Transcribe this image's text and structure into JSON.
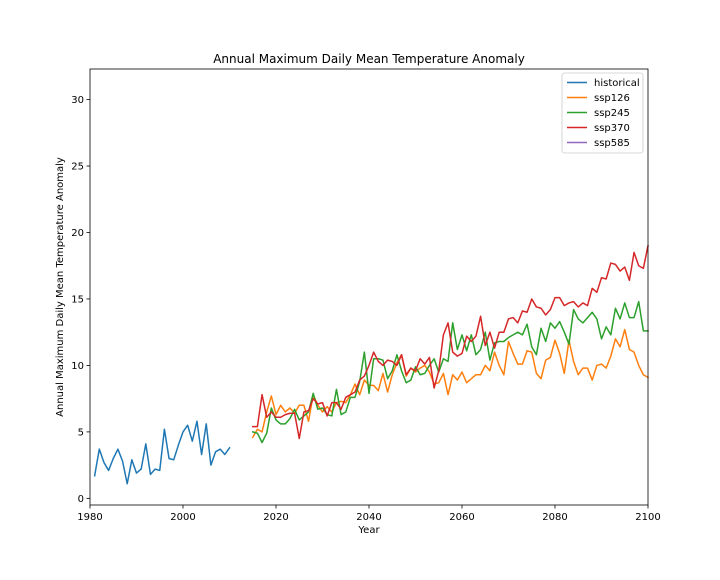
{
  "chart_data": {
    "type": "line",
    "title": "Annual Maximum Daily Mean Temperature Anomaly",
    "xlabel": "Year",
    "ylabel": "Annual Maximum Daily Mean Temperature Anomaly",
    "xlim": [
      1980,
      2100
    ],
    "ylim": [
      -0.5,
      32.3
    ],
    "xticks": [
      1980,
      2000,
      2020,
      2040,
      2060,
      2080,
      2100
    ],
    "yticks": [
      0,
      5,
      10,
      15,
      20,
      25,
      30
    ],
    "grid": false,
    "legend_position": "top-right",
    "series": [
      {
        "name": "historical",
        "color": "#1f77b4",
        "x": [
          1981,
          1982,
          1983,
          1984,
          1985,
          1986,
          1987,
          1988,
          1989,
          1990,
          1991,
          1992,
          1993,
          1994,
          1995,
          1996,
          1997,
          1998,
          1999,
          2000,
          2001,
          2002,
          2003,
          2004,
          2005,
          2006,
          2007,
          2008,
          2009,
          2010
        ],
        "y": [
          1.7,
          3.7,
          2.7,
          2.1,
          3.0,
          3.7,
          2.8,
          1.1,
          2.9,
          1.9,
          2.2,
          4.1,
          1.8,
          2.2,
          2.1,
          5.2,
          3.0,
          2.9,
          4.0,
          5.0,
          5.5,
          4.3,
          5.8,
          3.3,
          5.6,
          2.5,
          3.5,
          3.7,
          3.3,
          3.8
        ]
      },
      {
        "name": "ssp126",
        "color": "#ff7f0e",
        "x": [
          2015,
          2016,
          2017,
          2018,
          2019,
          2020,
          2021,
          2022,
          2023,
          2024,
          2025,
          2026,
          2027,
          2028,
          2029,
          2030,
          2031,
          2032,
          2033,
          2034,
          2035,
          2036,
          2037,
          2038,
          2039,
          2040,
          2041,
          2042,
          2043,
          2044,
          2045,
          2046,
          2047,
          2048,
          2049,
          2050,
          2051,
          2052,
          2053,
          2054,
          2055,
          2056,
          2057,
          2058,
          2059,
          2060,
          2061,
          2062,
          2063,
          2064,
          2065,
          2066,
          2067,
          2068,
          2069,
          2070,
          2071,
          2072,
          2073,
          2074,
          2075,
          2076,
          2077,
          2078,
          2079,
          2080,
          2081,
          2082,
          2083,
          2084,
          2085,
          2086,
          2087,
          2088,
          2089,
          2090,
          2091,
          2092,
          2093,
          2094,
          2095,
          2096,
          2097,
          2098,
          2099,
          2100
        ],
        "y": [
          4.6,
          5.2,
          5.0,
          6.5,
          7.7,
          6.3,
          7.0,
          6.5,
          6.8,
          6.4,
          7.0,
          7.0,
          5.8,
          7.8,
          7.0,
          6.5,
          6.9,
          6.5,
          7.2,
          7.3,
          7.2,
          7.8,
          8.6,
          7.8,
          8.9,
          8.5,
          8.5,
          8.1,
          9.4,
          8.0,
          9.3,
          10.2,
          10.8,
          9.2,
          9.8,
          9.5,
          9.8,
          10.0,
          9.5,
          8.6,
          8.7,
          9.4,
          7.8,
          9.3,
          8.9,
          9.5,
          8.7,
          9.0,
          9.3,
          9.3,
          10.0,
          9.6,
          11.0,
          10.0,
          9.3,
          11.8,
          10.9,
          10.1,
          10.1,
          11.1,
          11.0,
          9.4,
          9.0,
          10.4,
          10.6,
          11.9,
          10.9,
          9.4,
          11.9,
          10.3,
          9.3,
          9.8,
          9.8,
          8.9,
          10.0,
          10.1,
          9.8,
          10.7,
          12.0,
          11.4,
          12.7,
          11.2,
          11.0,
          10.0,
          9.3,
          9.1
        ]
      },
      {
        "name": "ssp245",
        "color": "#2ca02c",
        "x": [
          2015,
          2016,
          2017,
          2018,
          2019,
          2020,
          2021,
          2022,
          2023,
          2024,
          2025,
          2026,
          2027,
          2028,
          2029,
          2030,
          2031,
          2032,
          2033,
          2034,
          2035,
          2036,
          2037,
          2038,
          2039,
          2040,
          2041,
          2042,
          2043,
          2044,
          2045,
          2046,
          2047,
          2048,
          2049,
          2050,
          2051,
          2052,
          2053,
          2054,
          2055,
          2056,
          2057,
          2058,
          2059,
          2060,
          2061,
          2062,
          2063,
          2064,
          2065,
          2066,
          2067,
          2068,
          2069,
          2070,
          2071,
          2072,
          2073,
          2074,
          2075,
          2076,
          2077,
          2078,
          2079,
          2080,
          2081,
          2082,
          2083,
          2084,
          2085,
          2086,
          2087,
          2088,
          2089,
          2090,
          2091,
          2092,
          2093,
          2094,
          2095,
          2096,
          2097,
          2098,
          2099,
          2100
        ],
        "y": [
          5.0,
          4.9,
          4.2,
          4.9,
          6.8,
          5.9,
          5.6,
          5.6,
          6.0,
          6.7,
          5.9,
          6.2,
          6.5,
          7.9,
          6.7,
          6.8,
          6.3,
          6.2,
          8.2,
          6.3,
          6.5,
          7.6,
          7.6,
          8.8,
          11.0,
          7.9,
          10.5,
          10.5,
          10.4,
          9.0,
          9.6,
          10.8,
          9.6,
          8.7,
          8.9,
          9.9,
          9.3,
          9.4,
          10.0,
          10.5,
          9.5,
          10.5,
          10.3,
          13.2,
          11.2,
          12.3,
          11.1,
          12.3,
          10.8,
          11.2,
          12.5,
          10.4,
          11.7,
          11.8,
          11.8,
          12.1,
          12.3,
          12.5,
          12.3,
          13.1,
          11.4,
          10.8,
          12.8,
          11.8,
          13.2,
          12.8,
          13.3,
          12.5,
          11.6,
          14.2,
          13.5,
          13.2,
          13.6,
          14.0,
          13.5,
          12.0,
          12.9,
          12.3,
          14.3,
          13.5,
          14.7,
          13.6,
          13.6,
          14.8,
          12.6,
          12.6
        ]
      },
      {
        "name": "ssp370",
        "color": "#d62728",
        "x": [
          2015,
          2016,
          2017,
          2018,
          2019,
          2020,
          2021,
          2022,
          2023,
          2024,
          2025,
          2026,
          2027,
          2028,
          2029,
          2030,
          2031,
          2032,
          2033,
          2034,
          2035,
          2036,
          2037,
          2038,
          2039,
          2040,
          2041,
          2042,
          2043,
          2044,
          2045,
          2046,
          2047,
          2048,
          2049,
          2050,
          2051,
          2052,
          2053,
          2054,
          2055,
          2056,
          2057,
          2058,
          2059,
          2060,
          2061,
          2062,
          2063,
          2064,
          2065,
          2066,
          2067,
          2068,
          2069,
          2070,
          2071,
          2072,
          2073,
          2074,
          2075,
          2076,
          2077,
          2078,
          2079,
          2080,
          2081,
          2082,
          2083,
          2084,
          2085,
          2086,
          2087,
          2088,
          2089,
          2090,
          2091,
          2092,
          2093,
          2094,
          2095,
          2096,
          2097,
          2098,
          2099,
          2100
        ],
        "y": [
          5.4,
          5.4,
          7.8,
          6.1,
          6.5,
          6.1,
          6.1,
          6.3,
          6.4,
          6.4,
          4.5,
          6.5,
          6.6,
          7.5,
          7.1,
          7.2,
          6.2,
          7.2,
          7.2,
          6.7,
          7.6,
          7.8,
          8.0,
          8.9,
          9.2,
          10.0,
          11.0,
          10.3,
          10.0,
          10.4,
          10.3,
          10.0,
          10.8,
          9.3,
          9.8,
          9.6,
          10.5,
          10.1,
          10.6,
          8.3,
          9.6,
          12.3,
          13.2,
          11.0,
          10.7,
          10.9,
          12.2,
          11.8,
          12.2,
          13.7,
          11.5,
          12.5,
          11.3,
          12.5,
          12.5,
          13.5,
          13.6,
          13.2,
          14.1,
          14.0,
          15.0,
          14.4,
          14.3,
          13.8,
          14.2,
          15.1,
          15.1,
          14.5,
          14.7,
          14.8,
          14.4,
          14.7,
          14.5,
          15.8,
          15.5,
          16.6,
          16.5,
          17.7,
          17.6,
          17.1,
          17.4,
          16.4,
          18.5,
          17.5,
          17.3,
          19.0
        ]
      },
      {
        "name": "ssp585",
        "color": "#9467bd",
        "x": [],
        "y": []
      }
    ]
  }
}
